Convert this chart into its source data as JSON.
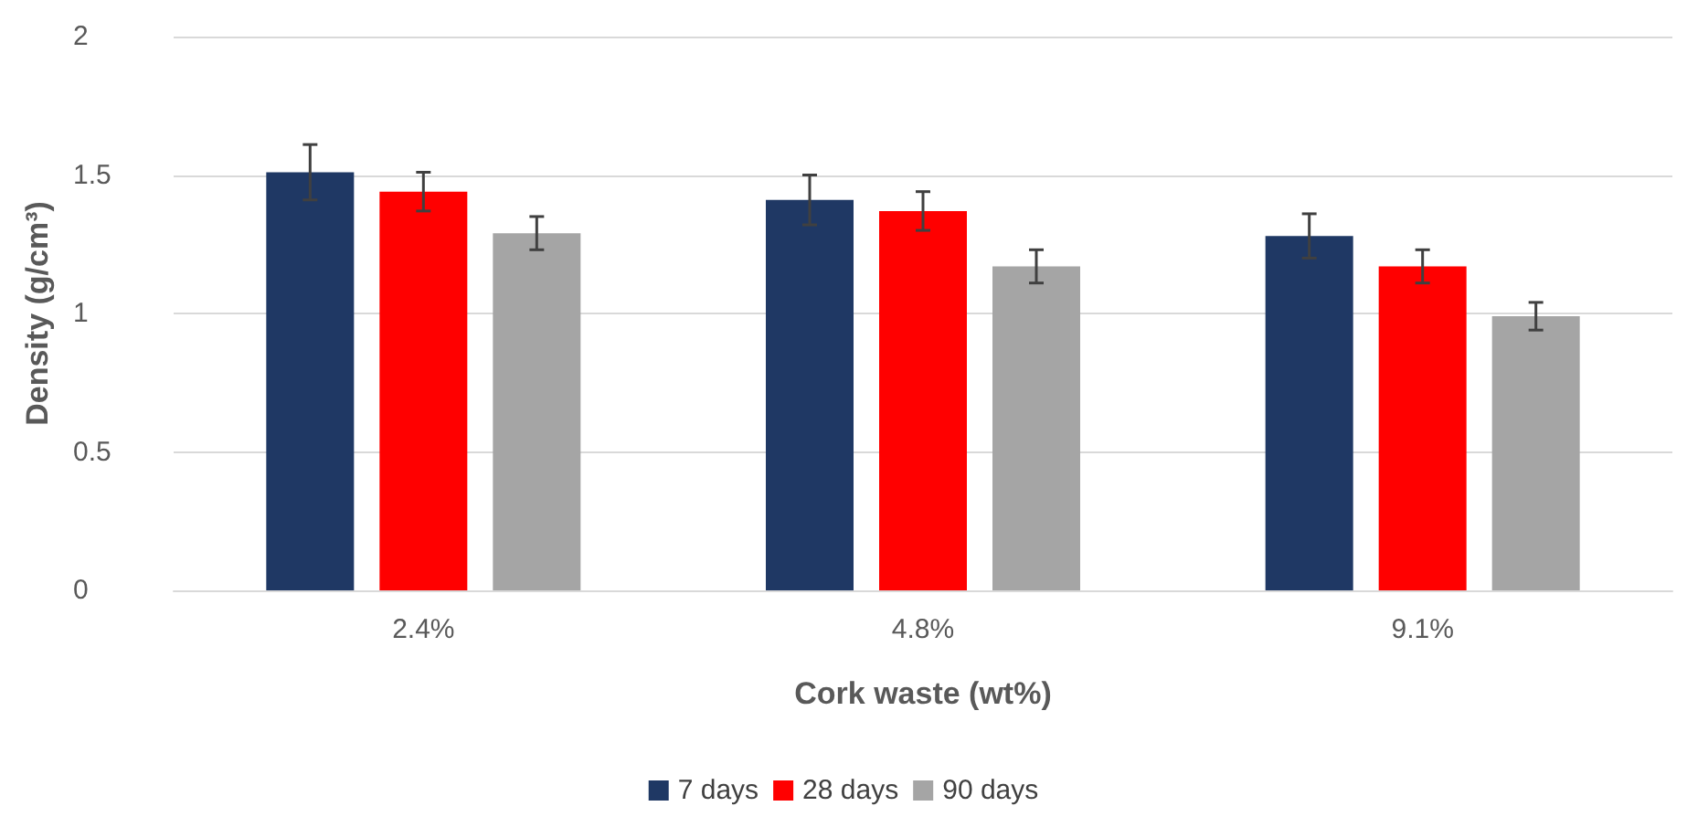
{
  "chart_data": {
    "type": "bar",
    "xlabel": "Cork waste (wt%)",
    "ylabel": "Density (g/cm³)",
    "categories": [
      "2.4%",
      "4.8%",
      "9.1%"
    ],
    "series": [
      {
        "name": "7 days",
        "color": "#1f3864",
        "values": [
          1.51,
          1.41,
          1.28
        ],
        "errors": [
          0.1,
          0.09,
          0.08
        ]
      },
      {
        "name": "28 days",
        "color": "#ff0000",
        "values": [
          1.44,
          1.37,
          1.17
        ],
        "errors": [
          0.07,
          0.07,
          0.06
        ]
      },
      {
        "name": "90 days",
        "color": "#a5a5a5",
        "values": [
          1.29,
          1.17,
          0.99
        ],
        "errors": [
          0.06,
          0.06,
          0.05
        ]
      }
    ],
    "ylim": [
      0,
      2
    ],
    "yticks": [
      0,
      0.5,
      1,
      1.5,
      2
    ],
    "grid": "y",
    "legend": "bottom"
  }
}
